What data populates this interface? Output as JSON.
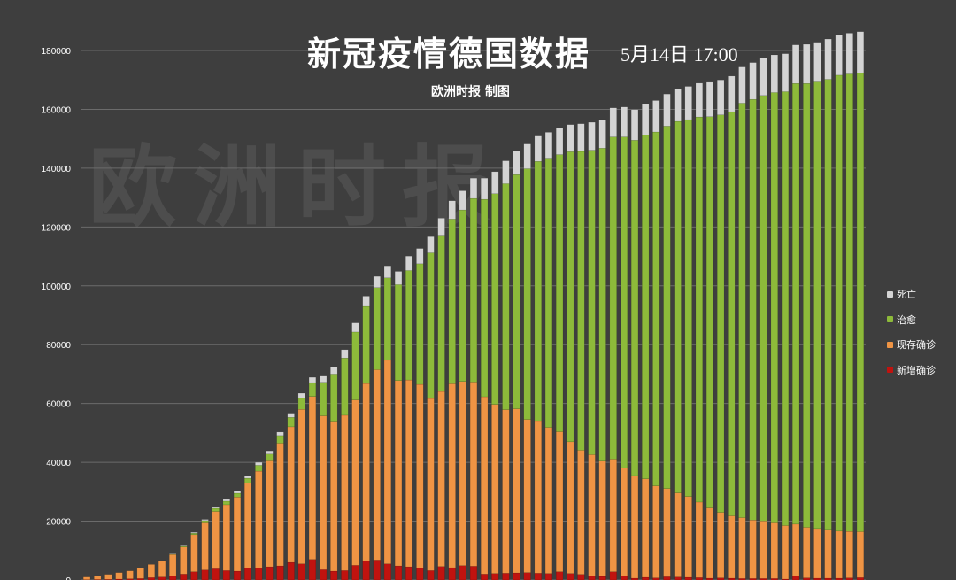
{
  "title": "新冠疫情德国数据",
  "date": "5月14日 17:00",
  "subtitle": "欧洲时报 制图",
  "watermark": "欧洲时报",
  "chart_data": {
    "type": "bar",
    "stacked": true,
    "ylim": [
      0,
      180000
    ],
    "yticks": [
      0,
      20000,
      40000,
      60000,
      80000,
      100000,
      120000,
      140000,
      160000,
      180000
    ],
    "ytick_labels": [
      "0",
      "20000",
      "40000",
      "60000",
      "80000",
      "100000",
      "120000",
      "140000",
      "160000",
      "180000"
    ],
    "grid": true,
    "legend_position": "right",
    "x_count": 73,
    "series": [
      {
        "name": "新增确诊",
        "color": "#c0130f",
        "values": [
          100,
          150,
          200,
          300,
          400,
          500,
          800,
          1000,
          1400,
          2000,
          2800,
          3400,
          3800,
          3200,
          3000,
          4000,
          4000,
          4500,
          4800,
          6000,
          5500,
          7000,
          3500,
          3000,
          3200,
          5000,
          6500,
          6800,
          5500,
          4800,
          4500,
          4000,
          3200,
          4600,
          4200,
          4900,
          4700,
          2000,
          2200,
          2300,
          2400,
          2500,
          2300,
          2200,
          2800,
          2200,
          1900,
          1300,
          1200,
          2800,
          1300,
          600,
          900,
          700,
          1100,
          1000,
          900,
          800,
          600,
          700,
          600,
          500,
          500,
          500,
          500,
          300,
          1300,
          700,
          600,
          600,
          600,
          700,
          800
        ]
      },
      {
        "name": "现存确诊",
        "color": "#ef9444",
        "values": [
          900,
          1300,
          1700,
          2200,
          2700,
          3500,
          4500,
          5600,
          7300,
          9200,
          12600,
          16000,
          19500,
          22400,
          25200,
          29000,
          33000,
          36000,
          41700,
          46100,
          52500,
          55400,
          52300,
          50700,
          52800,
          56200,
          60300,
          64700,
          69200,
          63000,
          63500,
          62500,
          58500,
          59500,
          62500,
          62600,
          62600,
          60300,
          57500,
          55600,
          55800,
          52100,
          51600,
          49700,
          47600,
          44800,
          42200,
          41300,
          39200,
          38300,
          36700,
          34900,
          33500,
          31300,
          30000,
          28600,
          27500,
          25700,
          23900,
          22300,
          21200,
          20700,
          19900,
          19600,
          18900,
          18200,
          17700,
          17200,
          16900,
          16600,
          16000,
          15800,
          15600
        ]
      },
      {
        "name": "治愈",
        "color": "#8dba3a",
        "values": [
          0,
          0,
          0,
          0,
          0,
          0,
          0,
          0,
          100,
          300,
          500,
          800,
          1100,
          1200,
          1300,
          1600,
          2000,
          2300,
          2600,
          3200,
          3900,
          4700,
          11400,
          16300,
          19500,
          23100,
          26200,
          27900,
          28000,
          32600,
          37200,
          41000,
          49500,
          53100,
          56000,
          58300,
          62400,
          67100,
          71600,
          76800,
          79600,
          85200,
          88400,
          91500,
          94200,
          98600,
          101600,
          103500,
          106400,
          109500,
          112600,
          114000,
          116900,
          120300,
          123200,
          126300,
          128100,
          130900,
          133000,
          135100,
          137400,
          140900,
          143000,
          144600,
          146300,
          147500,
          149800,
          150900,
          151800,
          153000,
          155000,
          155500,
          156000
        ]
      },
      {
        "name": "死亡",
        "color": "#d4d4d4",
        "values": [
          0,
          0,
          0,
          0,
          0,
          0,
          0,
          0,
          100,
          200,
          300,
          400,
          500,
          600,
          700,
          800,
          1000,
          1100,
          1200,
          1400,
          1600,
          1800,
          2100,
          2500,
          2800,
          3100,
          3500,
          3800,
          4100,
          4500,
          4900,
          5200,
          5500,
          5800,
          6200,
          6500,
          6900,
          7200,
          7500,
          7800,
          8100,
          8400,
          8600,
          8800,
          9000,
          9200,
          9400,
          9500,
          9700,
          9900,
          10200,
          10400,
          10500,
          10700,
          10900,
          11100,
          11300,
          11500,
          11700,
          11900,
          12100,
          12300,
          12500,
          12700,
          12800,
          12900,
          13100,
          13300,
          13500,
          13700,
          13800,
          13900,
          14000
        ]
      }
    ]
  }
}
